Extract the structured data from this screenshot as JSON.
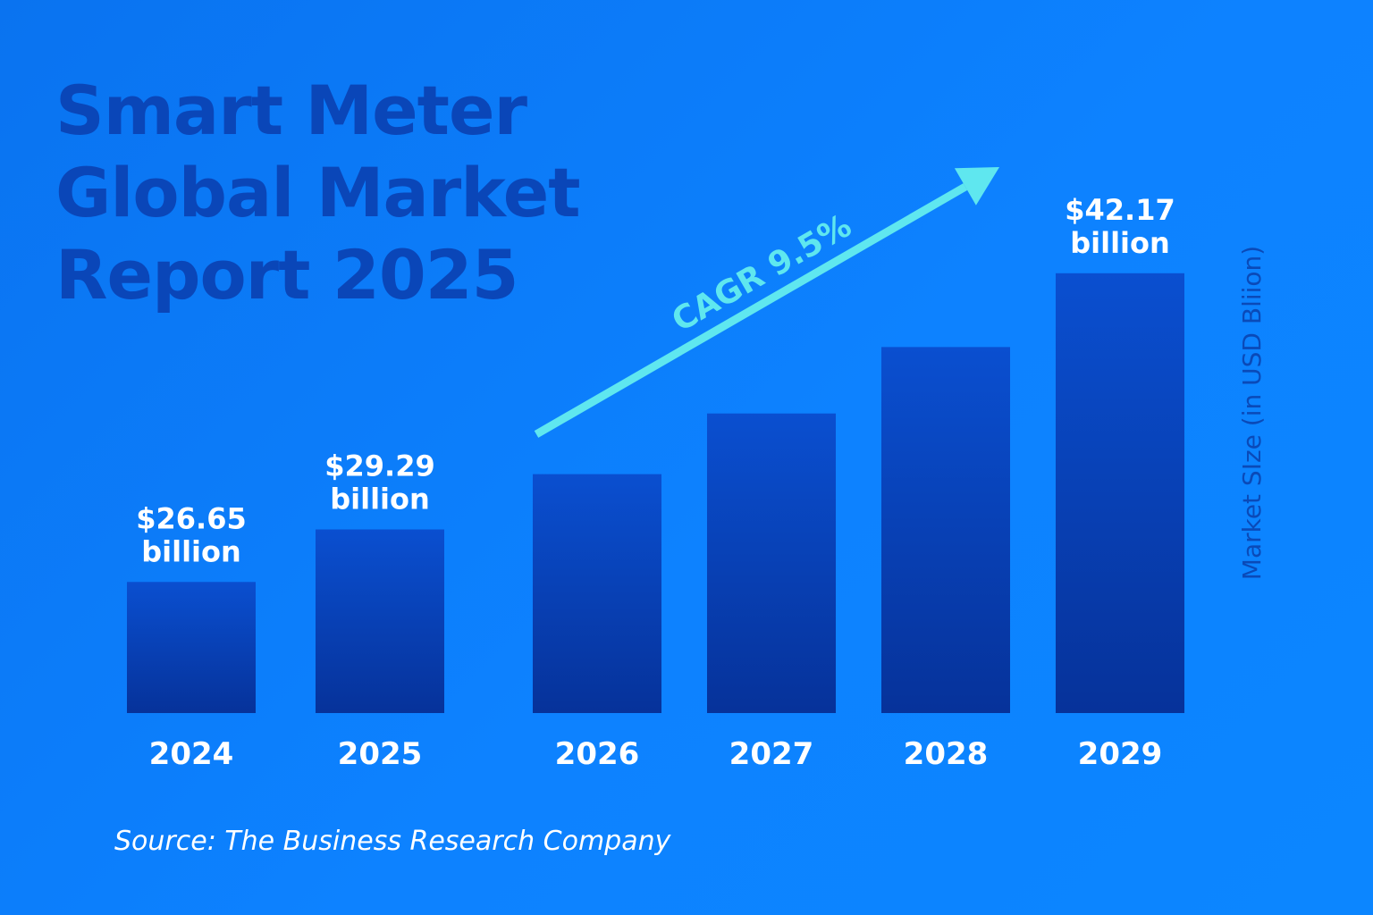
{
  "header": {
    "title_lines": [
      "Smart Meter",
      "Global Market",
      "Report 2025"
    ]
  },
  "footer": {
    "source": "Source: The Business Research Company"
  },
  "colors": {
    "background": "#0a7cf5",
    "title": "#0a46b8",
    "bar_top": "#0a4fd0",
    "bar_bottom": "#06329a",
    "arrow": "#5fe7ef",
    "axis_label": "#0a4ab8",
    "text": "#ffffff"
  },
  "chart_data": {
    "type": "bar",
    "title": "Smart Meter Global Market Report 2025",
    "categories": [
      "2024",
      "2025",
      "2026",
      "2027",
      "2028",
      "2029"
    ],
    "values": [
      26.65,
      29.29,
      32.07,
      35.12,
      38.46,
      42.17
    ],
    "value_labels": [
      [
        "$26.65",
        "billion"
      ],
      [
        "$29.29",
        "billion"
      ],
      null,
      null,
      null,
      [
        "$42.17",
        "billion"
      ]
    ],
    "ylabel": "Market SIze (in USD Bliion)",
    "annotation": "CAGR 9.5%",
    "grid": false
  }
}
